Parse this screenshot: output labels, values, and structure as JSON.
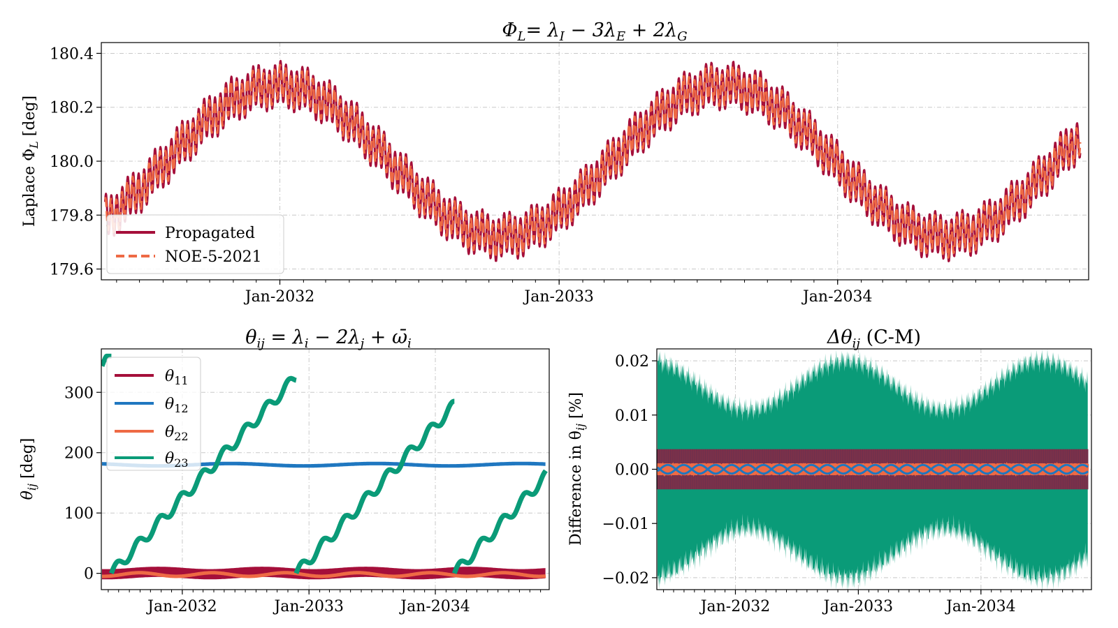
{
  "colors": {
    "propagated": "#a50f3a",
    "noe": "#ee6a45",
    "theta11": "#a50f3a",
    "theta12": "#1f77c0",
    "theta22": "#ee6a45",
    "theta23": "#0a9b78",
    "grid": "#c8c8c8"
  },
  "chart_data": [
    {
      "id": "laplace",
      "type": "line",
      "title": "Φ_L = λ_I − 3λ_E + 2λ_G",
      "title_parts": {
        "lhs": "Φ",
        "lhs_sub": "L",
        "rhs": "= λ",
        "s1": "I",
        "m1": " − 3λ",
        "s2": "E",
        "m2": " + 2λ",
        "s3": "G"
      },
      "ylabel": "Laplace Φ_L [deg]",
      "ylabel_parts": {
        "main": "Laplace Φ",
        "sub": "L",
        "unit": " [deg]"
      },
      "xlim": [
        "2031-05-12",
        "2034-11-26"
      ],
      "ylim": [
        179.56,
        180.44
      ],
      "yticks": [
        179.6,
        179.8,
        180.0,
        180.2,
        180.4
      ],
      "yticklabels": [
        "179.6",
        "179.8",
        "180.0",
        "180.2",
        "180.4"
      ],
      "xticks": [
        "2032-01-01",
        "2033-01-01",
        "2034-01-01"
      ],
      "xticklabels": [
        "Jan-2032",
        "Jan-2033",
        "Jan-2034"
      ],
      "grid": true,
      "legend_position": "lower-left",
      "series": [
        {
          "name": "Propagated",
          "style": "solid",
          "mean_offset": 180.0,
          "amplitude": 0.28,
          "period_days": 583,
          "phase_date": "2031-08-06",
          "osc_amp": 0.075,
          "osc_period_days": 7.15
        },
        {
          "name": "NOE-5-2021",
          "style": "dashed",
          "mean_offset": 180.0,
          "amplitude": 0.28,
          "period_days": 583,
          "phase_date": "2031-08-06",
          "osc_amp": 0.06,
          "osc_period_days": 7.15
        }
      ]
    },
    {
      "id": "theta",
      "type": "scatter",
      "title": "θ_ij = λ_i − 2λ_j + ϖ_i",
      "title_parts": {
        "a": "θ",
        "a_sub": "ij",
        "b": " = λ",
        "b_sub": "i",
        "c": " − 2λ",
        "c_sub": "j",
        "d": " + ω̄",
        "d_sub": "i"
      },
      "ylabel": "θ_ij [deg]",
      "ylabel_parts": {
        "main": "θ",
        "sub": "ij",
        "unit": " [deg]"
      },
      "xlim": [
        "2031-05-12",
        "2034-11-26"
      ],
      "ylim": [
        -27,
        372
      ],
      "yticks": [
        0,
        100,
        200,
        300
      ],
      "yticklabels": [
        "0",
        "100",
        "200",
        "300"
      ],
      "xticks": [
        "2032-01-01",
        "2033-01-01",
        "2034-01-01"
      ],
      "xticklabels": [
        "Jan-2032",
        "Jan-2033",
        "Jan-2034"
      ],
      "grid": true,
      "legend_position": "upper-left",
      "series": [
        {
          "name": "θ11",
          "sym": "θ",
          "sub": "11",
          "mean": 2,
          "spread": 7
        },
        {
          "name": "θ12",
          "sym": "θ",
          "sub": "12",
          "mean": 180,
          "spread": 3
        },
        {
          "name": "θ22",
          "sym": "θ",
          "sub": "22",
          "mean": 0,
          "spread": 3
        },
        {
          "name": "θ23",
          "sym": "θ",
          "sub": "23",
          "wraps_at": 360,
          "wrap_dates": [
            "2031-06-10",
            "2032-11-25",
            "2034-02-25"
          ],
          "rate_deg_per_day": 0.61
        }
      ]
    },
    {
      "id": "diff",
      "type": "area",
      "title": "Δθ_ij (C-M)",
      "title_parts": {
        "a": "Δθ",
        "a_sub": "ij",
        "b": " (C-M)"
      },
      "ylabel": "Difference in θ_ij [%]",
      "ylabel_parts": {
        "main": "Difference in θ",
        "sub": "ij",
        "unit": " [%]"
      },
      "xlim": [
        "2031-05-12",
        "2034-11-26"
      ],
      "ylim": [
        -0.0222,
        0.0222
      ],
      "yticks": [
        -0.02,
        -0.01,
        0.0,
        0.01,
        0.02
      ],
      "yticklabels": [
        "−0.02",
        "−0.01",
        "0.00",
        "0.01",
        "0.02"
      ],
      "xticks": [
        "2032-01-01",
        "2033-01-01",
        "2034-01-01"
      ],
      "xticklabels": [
        "Jan-2032",
        "Jan-2033",
        "Jan-2034"
      ],
      "grid": true,
      "series": [
        {
          "name": "θ23",
          "envelope_min": 0.011,
          "envelope_max": 0.02
        },
        {
          "name": "θ11",
          "band": 0.0037
        },
        {
          "name": "θ22",
          "band": 0.0011
        },
        {
          "name": "θ12",
          "band": 0.0008
        }
      ]
    }
  ]
}
